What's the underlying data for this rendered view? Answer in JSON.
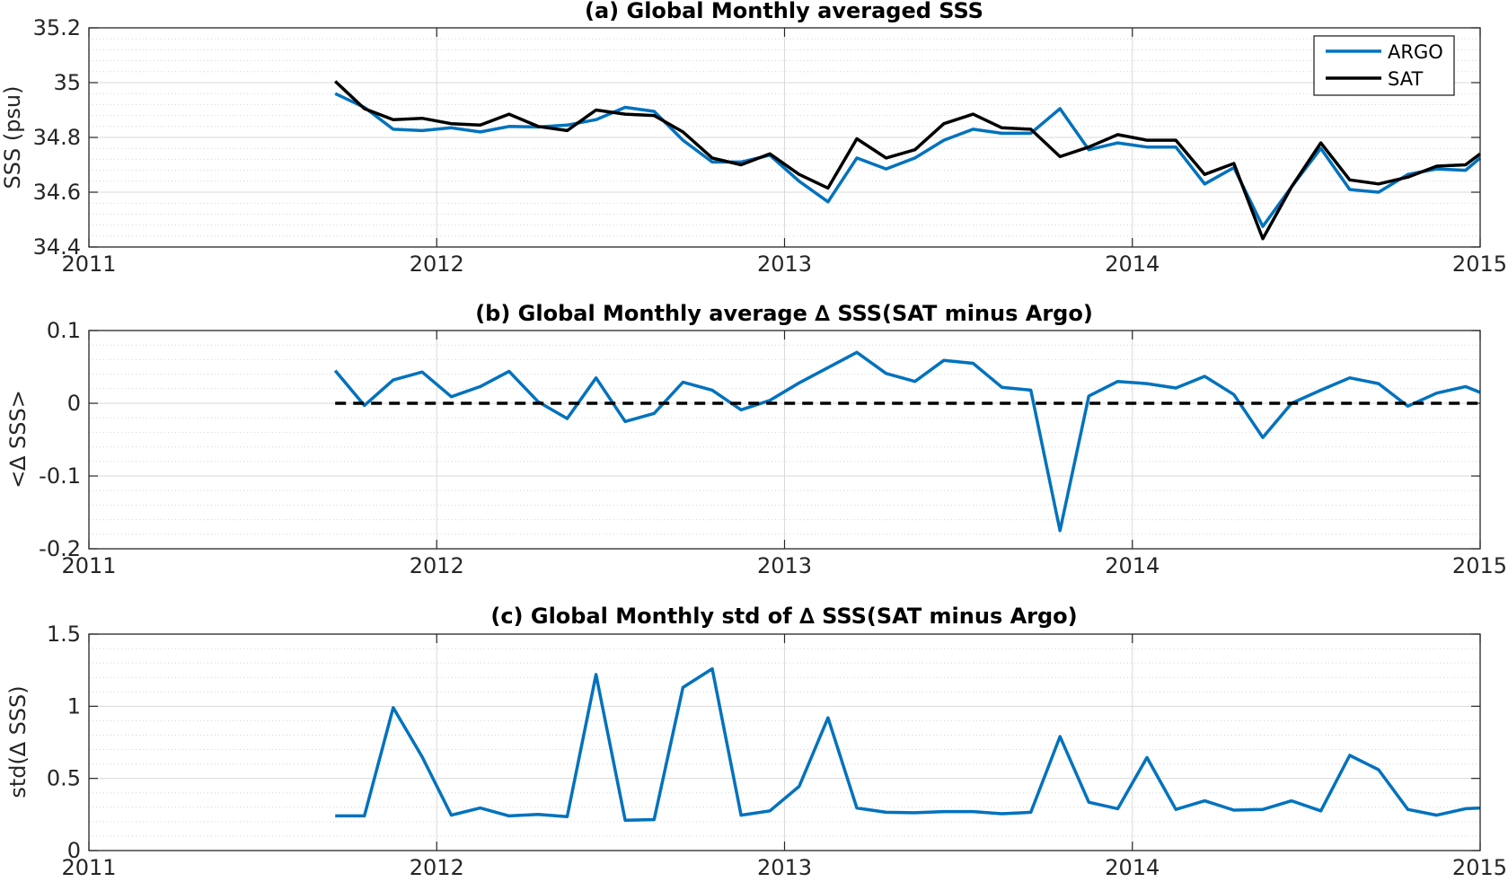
{
  "chart_data": [
    {
      "type": "line",
      "title": "(a) Global Monthly averaged SSS",
      "xlabel": "",
      "ylabel": "SSS (psu)",
      "xlim": [
        2011,
        2015
      ],
      "ylim": [
        34.4,
        35.2
      ],
      "xticks": [
        2011,
        2012,
        2013,
        2014,
        2015
      ],
      "xtick_labels": [
        "2011",
        "2012",
        "2013",
        "2014",
        "2015"
      ],
      "yticks": [
        34.4,
        34.6,
        34.8,
        35,
        35.2
      ],
      "ytick_labels": [
        "34.4",
        "34.6",
        "34.8",
        "35",
        "35.2"
      ],
      "y_minor_step": 0.04,
      "grid": true,
      "legend": "top-right",
      "x": [
        2011.708,
        2011.792,
        2011.875,
        2011.958,
        2012.042,
        2012.125,
        2012.208,
        2012.292,
        2012.375,
        2012.458,
        2012.542,
        2012.625,
        2012.708,
        2012.792,
        2012.875,
        2012.958,
        2013.042,
        2013.125,
        2013.208,
        2013.292,
        2013.375,
        2013.458,
        2013.542,
        2013.625,
        2013.708,
        2013.792,
        2013.875,
        2013.958,
        2014.042,
        2014.125,
        2014.208,
        2014.292,
        2014.375,
        2014.458,
        2014.542,
        2014.625,
        2014.708,
        2014.792,
        2014.875,
        2014.958,
        2015.0
      ],
      "series": [
        {
          "name": "ARGO",
          "color": "#0072BD",
          "dash": "",
          "values": [
            34.96,
            34.91,
            34.83,
            34.825,
            34.835,
            34.82,
            34.84,
            34.838,
            34.845,
            34.865,
            34.91,
            34.895,
            34.79,
            34.71,
            34.71,
            34.735,
            34.64,
            34.565,
            34.725,
            34.685,
            34.725,
            34.79,
            34.83,
            34.815,
            34.815,
            34.905,
            34.755,
            34.78,
            34.765,
            34.765,
            34.63,
            34.69,
            34.475,
            34.62,
            34.76,
            34.61,
            34.6,
            34.665,
            34.685,
            34.68,
            34.725
          ]
        },
        {
          "name": "SAT",
          "color": "#000000",
          "dash": "",
          "values": [
            35.005,
            34.905,
            34.865,
            34.87,
            34.85,
            34.845,
            34.885,
            34.84,
            34.825,
            34.9,
            34.885,
            34.88,
            34.82,
            34.725,
            34.7,
            34.74,
            34.665,
            34.615,
            34.795,
            34.725,
            34.755,
            34.85,
            34.885,
            34.835,
            34.83,
            34.73,
            34.765,
            34.81,
            34.79,
            34.79,
            34.665,
            34.705,
            34.43,
            34.62,
            34.78,
            34.645,
            34.63,
            34.655,
            34.695,
            34.7,
            34.74
          ]
        }
      ]
    },
    {
      "type": "line",
      "title": "(b) Global Monthly average ∆ SSS(SAT minus Argo)",
      "xlabel": "",
      "ylabel": "<∆ SSS>",
      "xlim": [
        2011,
        2015
      ],
      "ylim": [
        -0.2,
        0.1
      ],
      "xticks": [
        2011,
        2012,
        2013,
        2014,
        2015
      ],
      "xtick_labels": [
        "2011",
        "2012",
        "2013",
        "2014",
        "2015"
      ],
      "yticks": [
        -0.2,
        -0.1,
        0,
        0.1
      ],
      "ytick_labels": [
        "-0.2",
        "-0.1",
        "0",
        "0.1"
      ],
      "y_minor_step": 0.02,
      "grid": true,
      "x": [
        2011.708,
        2011.792,
        2011.875,
        2011.958,
        2012.042,
        2012.125,
        2012.208,
        2012.292,
        2012.375,
        2012.458,
        2012.542,
        2012.625,
        2012.708,
        2012.792,
        2012.875,
        2012.958,
        2013.042,
        2013.125,
        2013.208,
        2013.292,
        2013.375,
        2013.458,
        2013.542,
        2013.625,
        2013.708,
        2013.792,
        2013.875,
        2013.958,
        2014.042,
        2014.125,
        2014.208,
        2014.292,
        2014.375,
        2014.458,
        2014.542,
        2014.625,
        2014.708,
        2014.792,
        2014.875,
        2014.958,
        2015.0
      ],
      "series": [
        {
          "color": "#0072BD",
          "dash": "",
          "values": [
            0.045,
            -0.003,
            0.032,
            0.043,
            0.009,
            0.023,
            0.044,
            0.002,
            -0.021,
            0.035,
            -0.025,
            -0.014,
            0.029,
            0.018,
            -0.009,
            0.004,
            0.028,
            0.049,
            0.07,
            0.041,
            0.03,
            0.059,
            0.055,
            0.022,
            0.018,
            -0.175,
            0.01,
            0.03,
            0.027,
            0.021,
            0.037,
            0.012,
            -0.047,
            0.0,
            0.018,
            0.035,
            0.027,
            -0.004,
            0.014,
            0.023,
            0.015
          ]
        },
        {
          "color": "#000000",
          "dash": "12 8",
          "x": [
            2011.708,
            2015.0
          ],
          "values": [
            0,
            0
          ]
        }
      ]
    },
    {
      "type": "line",
      "title": "(c) Global Monthly std of ∆ SSS(SAT minus Argo)",
      "xlabel": "",
      "ylabel": "std(∆ SSS)",
      "xlim": [
        2011,
        2015
      ],
      "ylim": [
        0,
        1.5
      ],
      "xticks": [
        2011,
        2012,
        2013,
        2014,
        2015
      ],
      "xtick_labels": [
        "2011",
        "2012",
        "2013",
        "2014",
        "2015"
      ],
      "yticks": [
        0,
        0.5,
        1,
        1.5
      ],
      "ytick_labels": [
        "0",
        "0.5",
        "1",
        "1.5"
      ],
      "y_minor_step": 0.1,
      "grid": true,
      "x": [
        2011.708,
        2011.792,
        2011.875,
        2011.958,
        2012.042,
        2012.125,
        2012.208,
        2012.292,
        2012.375,
        2012.458,
        2012.542,
        2012.625,
        2012.708,
        2012.792,
        2012.875,
        2012.958,
        2013.042,
        2013.125,
        2013.208,
        2013.292,
        2013.375,
        2013.458,
        2013.542,
        2013.625,
        2013.708,
        2013.792,
        2013.875,
        2013.958,
        2014.042,
        2014.125,
        2014.208,
        2014.292,
        2014.375,
        2014.458,
        2014.542,
        2014.625,
        2014.708,
        2014.792,
        2014.875,
        2014.958,
        2015.0
      ],
      "series": [
        {
          "color": "#0072BD",
          "dash": "",
          "values": [
            0.24,
            0.24,
            0.99,
            0.65,
            0.245,
            0.295,
            0.24,
            0.25,
            0.235,
            1.22,
            0.21,
            0.215,
            1.13,
            1.26,
            0.245,
            0.275,
            0.445,
            0.92,
            0.295,
            0.265,
            0.262,
            0.27,
            0.27,
            0.255,
            0.265,
            0.79,
            0.335,
            0.29,
            0.645,
            0.285,
            0.345,
            0.28,
            0.285,
            0.345,
            0.275,
            0.66,
            0.56,
            0.285,
            0.245,
            0.29,
            0.295
          ]
        }
      ]
    }
  ]
}
